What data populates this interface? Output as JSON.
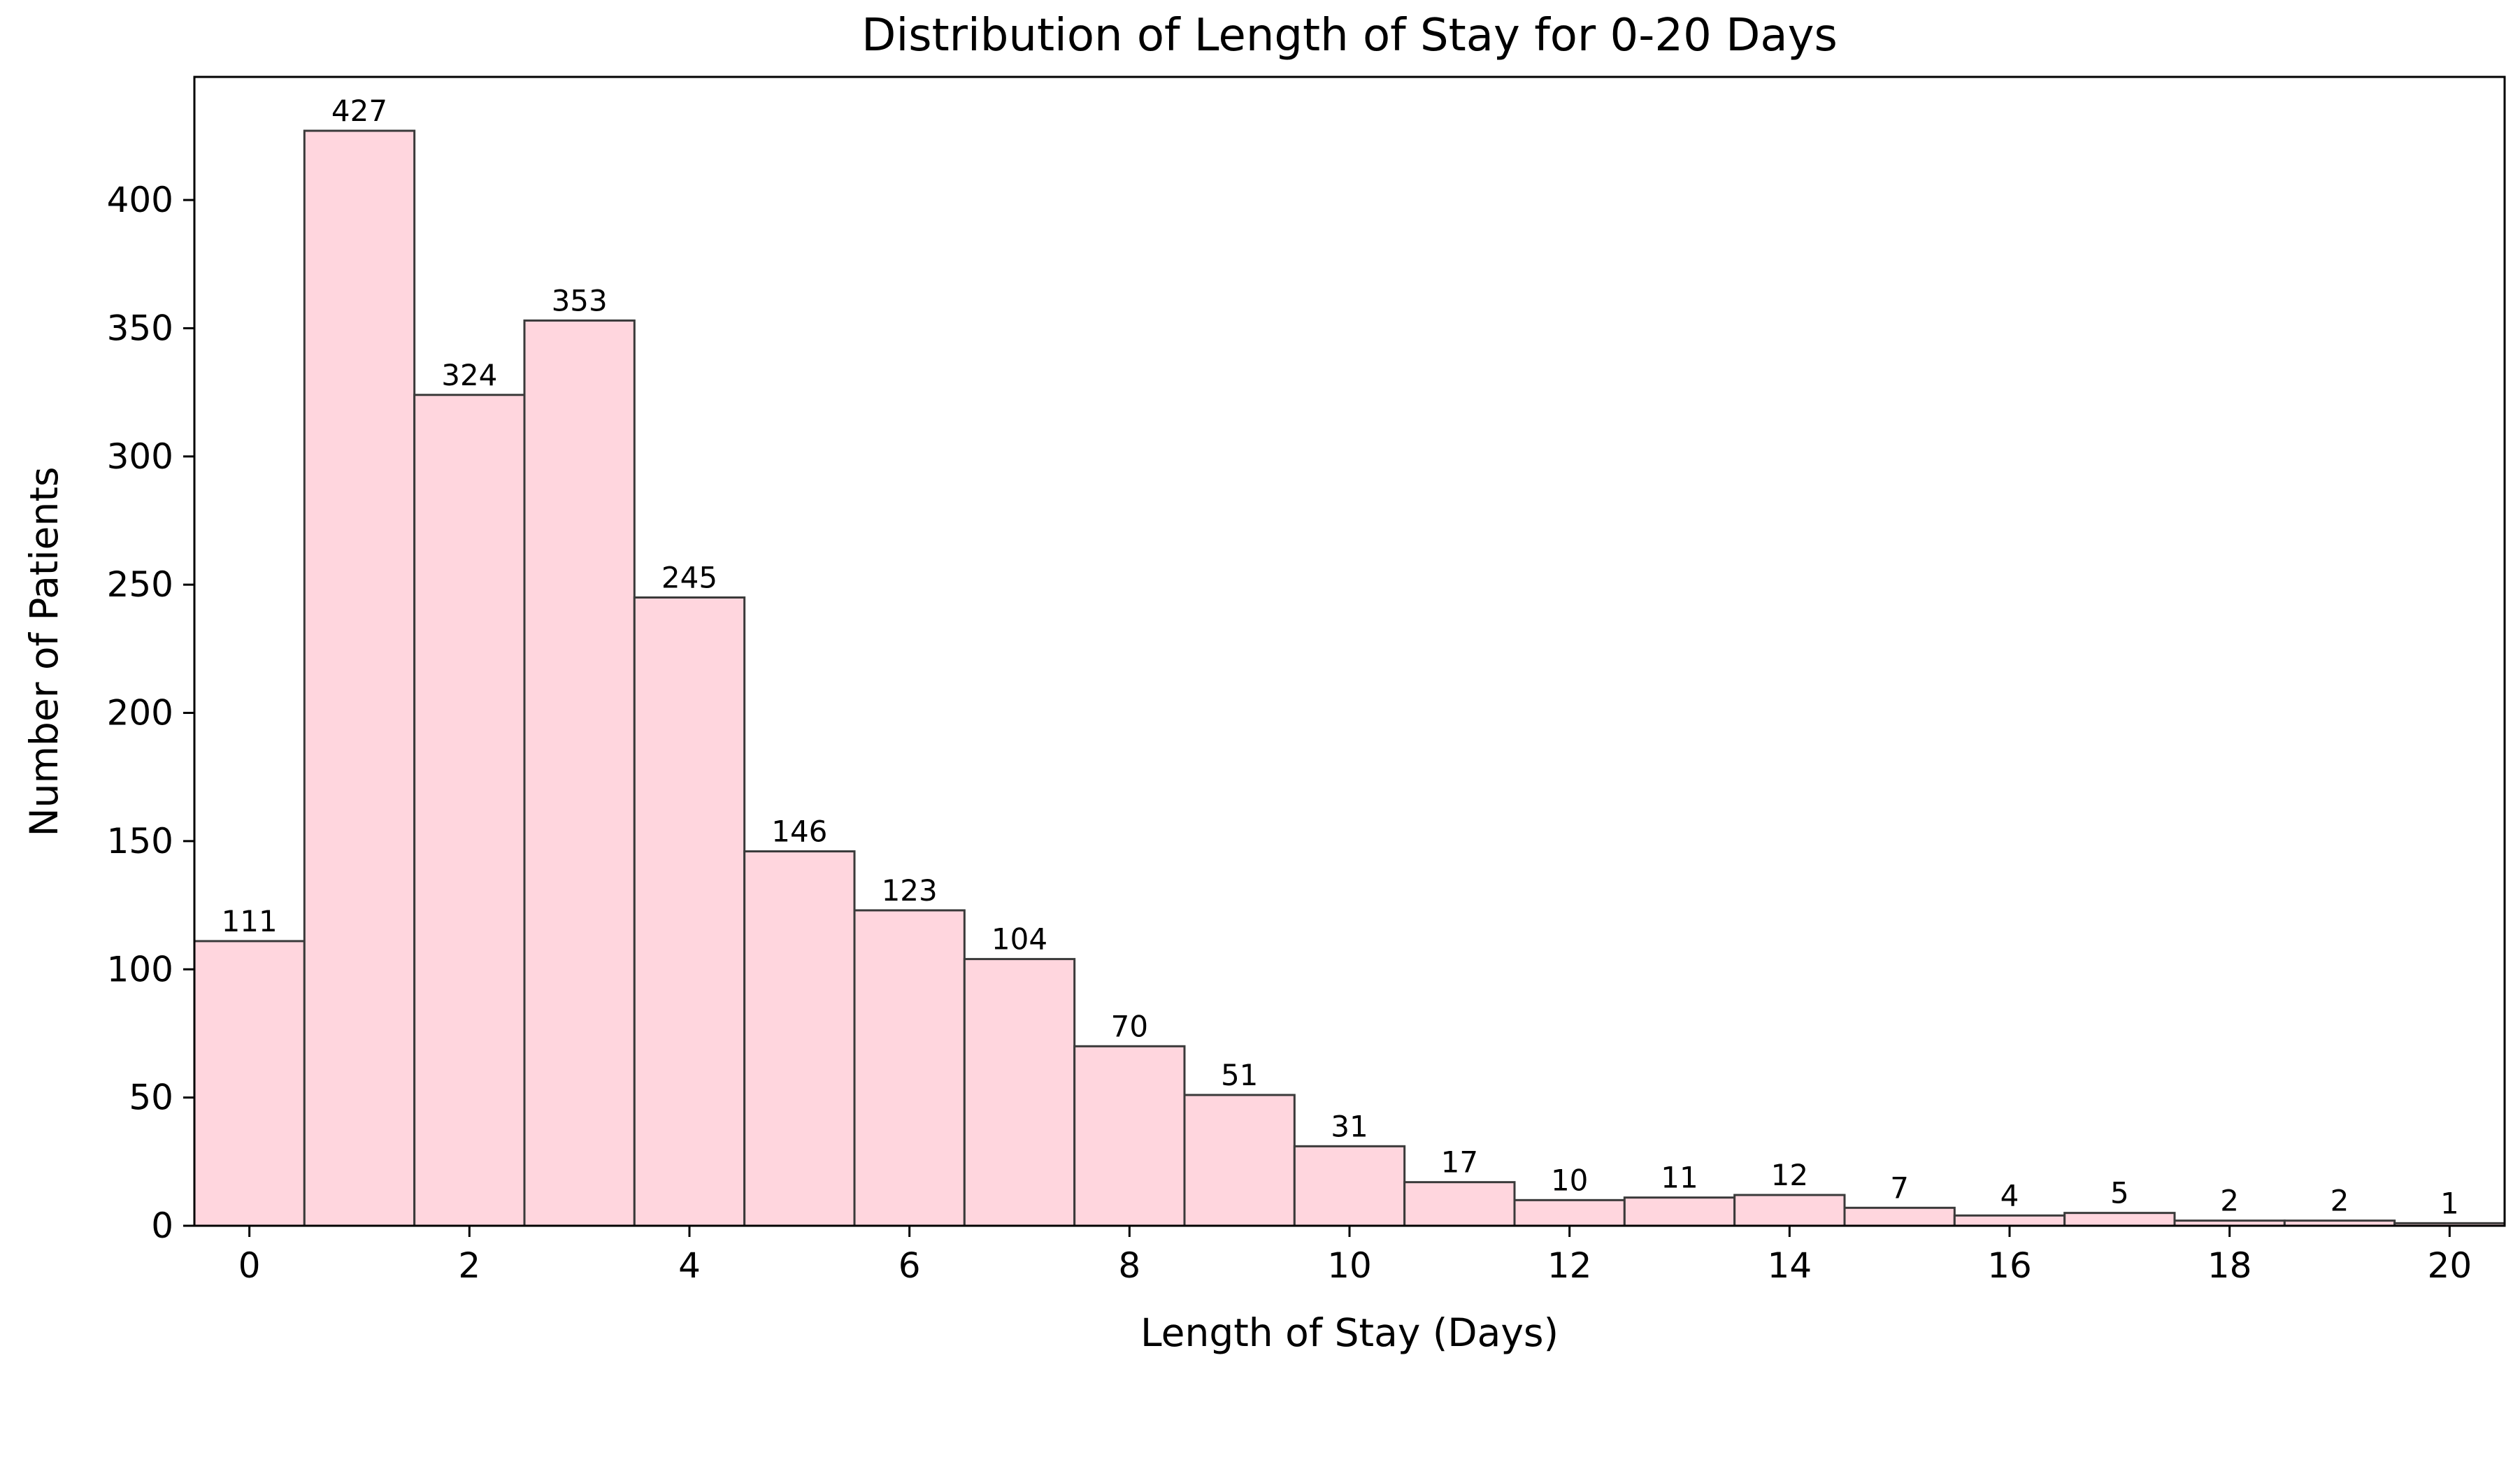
{
  "chart_data": {
    "type": "bar",
    "title": "Distribution of Length of Stay for 0-20 Days",
    "xlabel": "Length of Stay (Days)",
    "ylabel": "Number of Patients",
    "categories": [
      0,
      1,
      2,
      3,
      4,
      5,
      6,
      7,
      8,
      9,
      10,
      11,
      12,
      13,
      14,
      15,
      16,
      17,
      18,
      19,
      20
    ],
    "values": [
      111,
      427,
      324,
      353,
      245,
      146,
      123,
      104,
      70,
      51,
      31,
      17,
      10,
      11,
      12,
      7,
      4,
      5,
      2,
      2,
      1
    ],
    "data_labels": [
      "111",
      "427",
      "324",
      "353",
      "245",
      "146",
      "123",
      "104",
      "70",
      "51",
      "31",
      "17",
      "10",
      "11",
      "12",
      "7",
      "4",
      "5",
      "2",
      "2",
      "1"
    ],
    "xlim": [
      -0.5,
      20.5
    ],
    "ylim": [
      0,
      448
    ],
    "xticks": [
      0,
      2,
      4,
      6,
      8,
      10,
      12,
      14,
      16,
      18,
      20
    ],
    "xtick_labels": [
      "0",
      "2",
      "4",
      "6",
      "8",
      "10",
      "12",
      "14",
      "16",
      "18",
      "20"
    ],
    "yticks": [
      0,
      50,
      100,
      150,
      200,
      250,
      300,
      350,
      400
    ],
    "ytick_labels": [
      "0",
      "50",
      "100",
      "150",
      "200",
      "250",
      "300",
      "350",
      "400"
    ],
    "bar_color": "#ffd6de",
    "bar_edge_color": "#3a3a3a",
    "grid": false
  }
}
